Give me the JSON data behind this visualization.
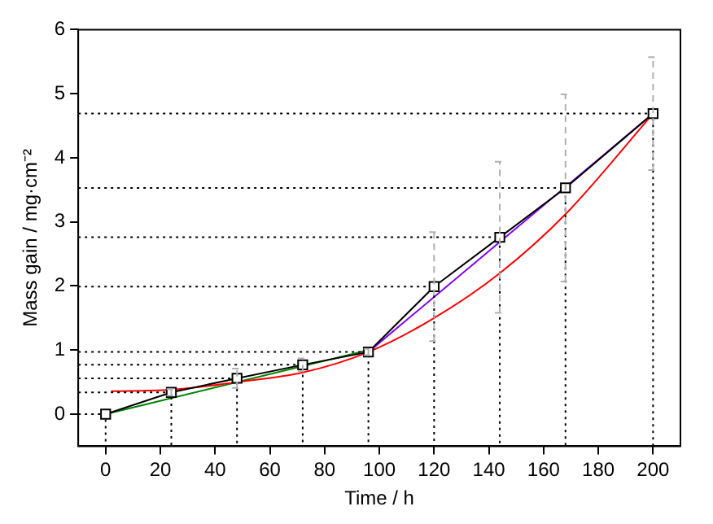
{
  "chart_data": {
    "type": "line",
    "xlabel": "Time / h",
    "ylabel": "Mass gain / mg·cm⁻²",
    "xlim": [
      -10,
      210
    ],
    "xticks": [
      0,
      20,
      40,
      60,
      80,
      100,
      120,
      140,
      160,
      180,
      200
    ],
    "ylim": [
      -0.5,
      6
    ],
    "yticks": [
      0,
      1,
      2,
      3,
      4,
      5,
      6
    ],
    "grid": false,
    "legend": false,
    "series": [
      {
        "color": "#000000",
        "line_style": "solid",
        "marker": "square",
        "x": [
          0,
          24,
          48,
          72,
          96,
          120,
          144,
          168,
          200
        ],
        "values": [
          0,
          0.34,
          0.56,
          0.77,
          0.97,
          1.99,
          2.76,
          3.53,
          4.69
        ],
        "errors": [
          null,
          0.05,
          0.15,
          0.1,
          0.05,
          0.85,
          1.18,
          1.46,
          0.88
        ]
      },
      {
        "color": "#000000",
        "line_style": "dotted",
        "marker": "none",
        "x": [
          -10,
          24,
          24
        ],
        "values": [
          0.34,
          0.34,
          -0.5
        ]
      },
      {
        "color": "#000000",
        "line_style": "dotted",
        "marker": "none",
        "x": [
          -10,
          48,
          48
        ],
        "values": [
          0.56,
          0.56,
          -0.5
        ]
      },
      {
        "color": "#000000",
        "line_style": "dotted",
        "marker": "none",
        "x": [
          -10,
          72,
          72
        ],
        "values": [
          0.77,
          0.77,
          -0.5
        ]
      },
      {
        "color": "#000000",
        "line_style": "dotted",
        "marker": "none",
        "x": [
          -10,
          96,
          96
        ],
        "values": [
          0.97,
          0.97,
          -0.5
        ]
      },
      {
        "color": "#000000",
        "line_style": "dotted",
        "marker": "none",
        "x": [
          -10,
          120,
          120
        ],
        "values": [
          1.99,
          1.99,
          -0.5
        ]
      },
      {
        "color": "#000000",
        "line_style": "dotted",
        "marker": "none",
        "x": [
          -10,
          144,
          144
        ],
        "values": [
          2.76,
          2.76,
          -0.5
        ]
      },
      {
        "color": "#000000",
        "line_style": "dotted",
        "marker": "none",
        "x": [
          -10,
          168,
          168
        ],
        "values": [
          3.53,
          3.53,
          -0.5
        ]
      },
      {
        "color": "#000000",
        "line_style": "dotted",
        "marker": "none",
        "x": [
          -10,
          200,
          200
        ],
        "values": [
          4.69,
          4.69,
          -0.5
        ]
      },
      {
        "color": "#000000",
        "line_style": "dotted",
        "marker": "none",
        "x": [
          -10,
          0,
          0
        ],
        "values": [
          0,
          0,
          -0.5
        ]
      },
      {
        "color": "#ff0000",
        "line_style": "solid",
        "marker": "none",
        "x": [
          2,
          24,
          48,
          72,
          96,
          120,
          144,
          168,
          200
        ],
        "values": [
          0.36,
          0.38,
          0.5,
          0.65,
          0.97,
          1.5,
          2.2,
          3.12,
          4.69
        ]
      },
      {
        "color": "#008000",
        "line_style": "solid",
        "marker": "none",
        "x": [
          0,
          96
        ],
        "values": [
          0,
          1
        ]
      },
      {
        "color": "#7f00ff",
        "line_style": "solid",
        "marker": "none",
        "x": [
          96,
          200
        ],
        "values": [
          0.97,
          4.69
        ]
      }
    ]
  }
}
